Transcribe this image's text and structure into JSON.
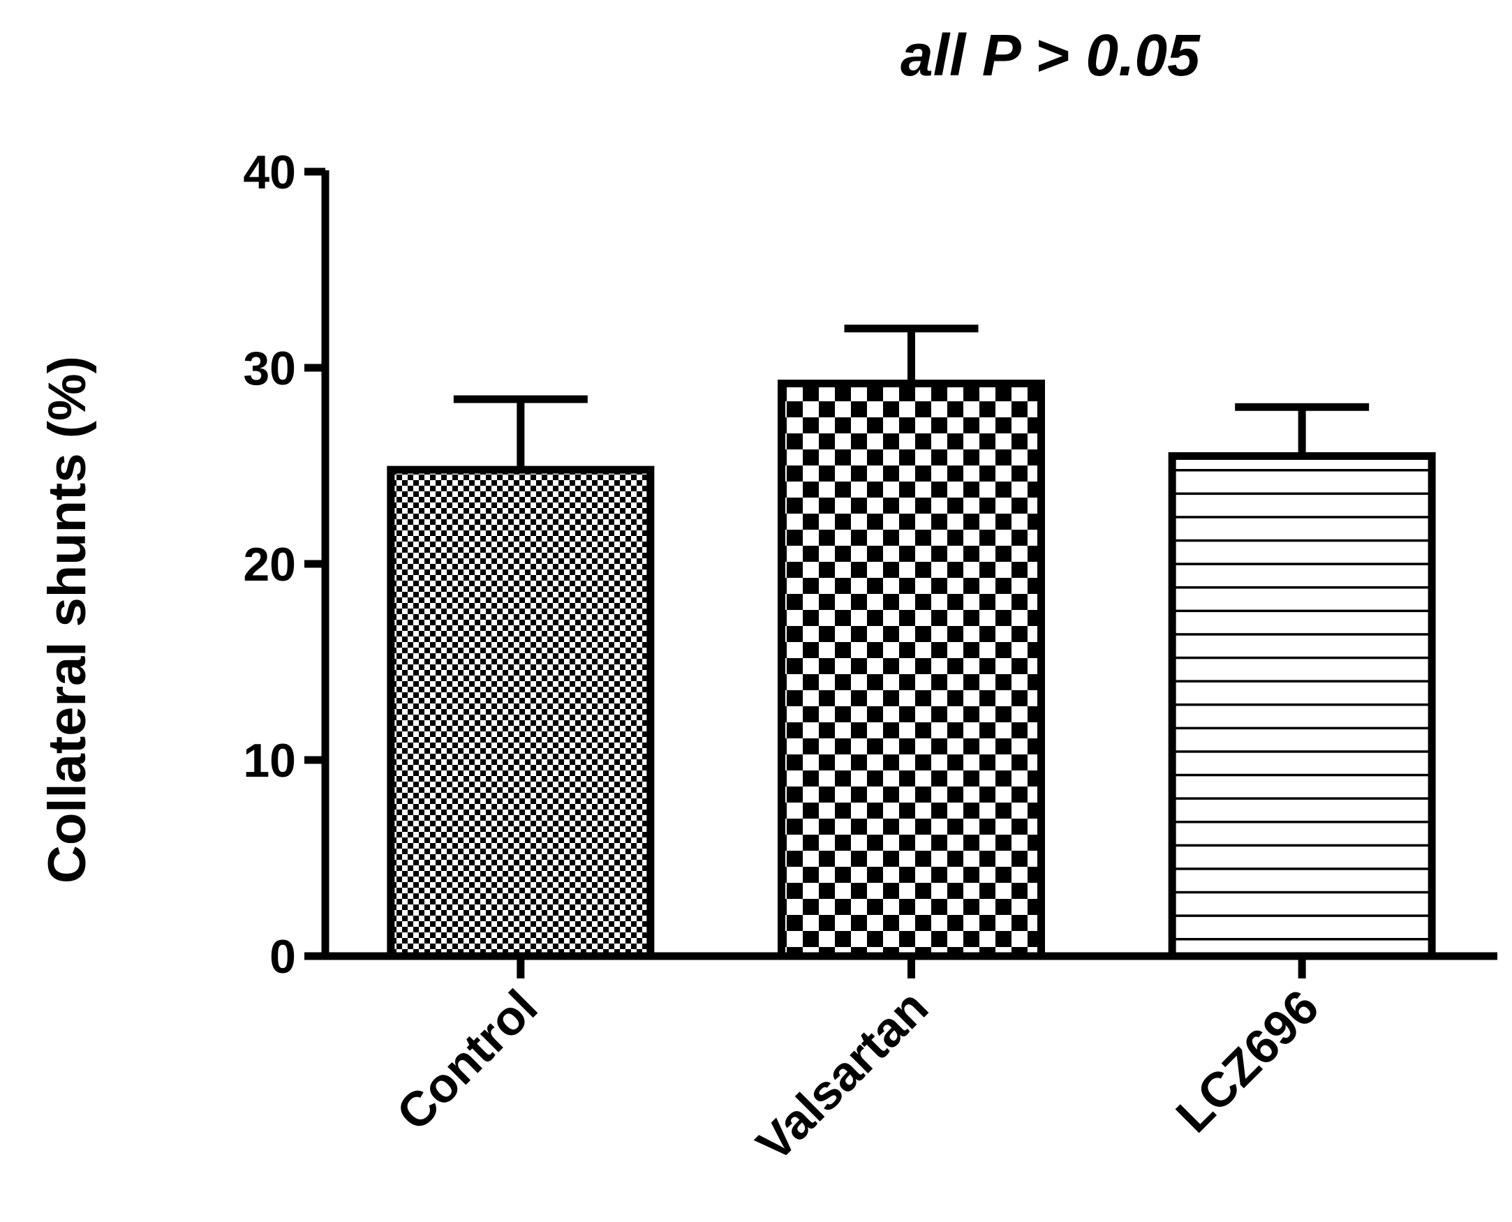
{
  "chart_data": {
    "type": "bar",
    "categories": [
      "Control",
      "Valsartan",
      "LCZ696"
    ],
    "values": [
      24.8,
      29.2,
      25.5
    ],
    "error_upper": [
      28.4,
      32.0,
      28.0
    ],
    "patterns": [
      "fine-checker",
      "coarse-checker",
      "horizontal-lines"
    ],
    "title": "",
    "annotation": "all P > 0.05",
    "xlabel": "",
    "ylabel": "Collateral shunts (%)",
    "ylim": [
      0,
      40
    ],
    "yticks": [
      "0",
      "10",
      "20",
      "30",
      "40"
    ],
    "grid": false,
    "legend": "none"
  }
}
